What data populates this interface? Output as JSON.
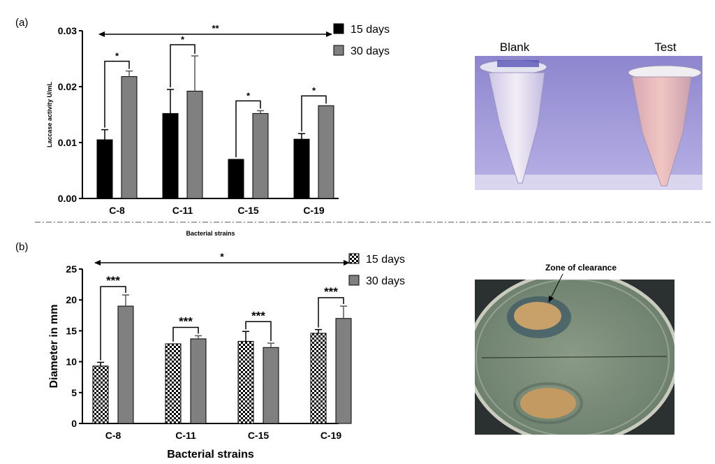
{
  "panels": {
    "a": {
      "label": "(a)",
      "photo_labels": {
        "left": "Blank",
        "right": "Test"
      }
    },
    "b": {
      "label": "(b)",
      "photo_annotation": "Zone of clearance"
    }
  },
  "chart_data": [
    {
      "type": "bar",
      "title": "",
      "xlabel": "Bacterial strains",
      "ylabel": "Laccase activity U/mL",
      "categories": [
        "C-8",
        "C-11",
        "C-15",
        "C-19"
      ],
      "ylim": [
        0,
        0.03
      ],
      "yticks": [
        "0.00",
        "0.01",
        "0.02",
        "0.03"
      ],
      "grid": false,
      "legend_position": "top-right",
      "series": [
        {
          "name": "15 days",
          "color": "#000000",
          "pattern": "solid",
          "values": [
            0.0105,
            0.0152,
            0.007,
            0.0106
          ],
          "errors": [
            0.0018,
            0.0043,
            0.0,
            0.001
          ]
        },
        {
          "name": "30 days",
          "color": "#808080",
          "pattern": "solid",
          "values": [
            0.0218,
            0.0192,
            0.0152,
            0.0166
          ],
          "errors": [
            0.001,
            0.0063,
            0.0005,
            0.0
          ]
        }
      ],
      "significance": {
        "pairs": [
          "*",
          "*",
          "*",
          "*"
        ],
        "overall": "**"
      }
    },
    {
      "type": "bar",
      "title": "",
      "xlabel": "Bacterial strains",
      "ylabel": "Diameter in mm",
      "categories": [
        "C-8",
        "C-11",
        "C-15",
        "C-19"
      ],
      "ylim": [
        0,
        25
      ],
      "yticks": [
        "0",
        "5",
        "10",
        "15",
        "20",
        "25"
      ],
      "grid": false,
      "legend_position": "top-right",
      "series": [
        {
          "name": "15 days",
          "color": "#000000",
          "pattern": "checker",
          "values": [
            9.3,
            12.9,
            13.3,
            14.6
          ],
          "errors": [
            0.6,
            0.0,
            1.6,
            0.6
          ]
        },
        {
          "name": "30 days",
          "color": "#808080",
          "pattern": "solid",
          "values": [
            19.0,
            13.7,
            12.3,
            17.0
          ],
          "errors": [
            1.8,
            0.5,
            0.7,
            2.0
          ]
        }
      ],
      "significance": {
        "pairs": [
          "***",
          "***",
          "***",
          "***"
        ],
        "overall": "*"
      }
    }
  ]
}
